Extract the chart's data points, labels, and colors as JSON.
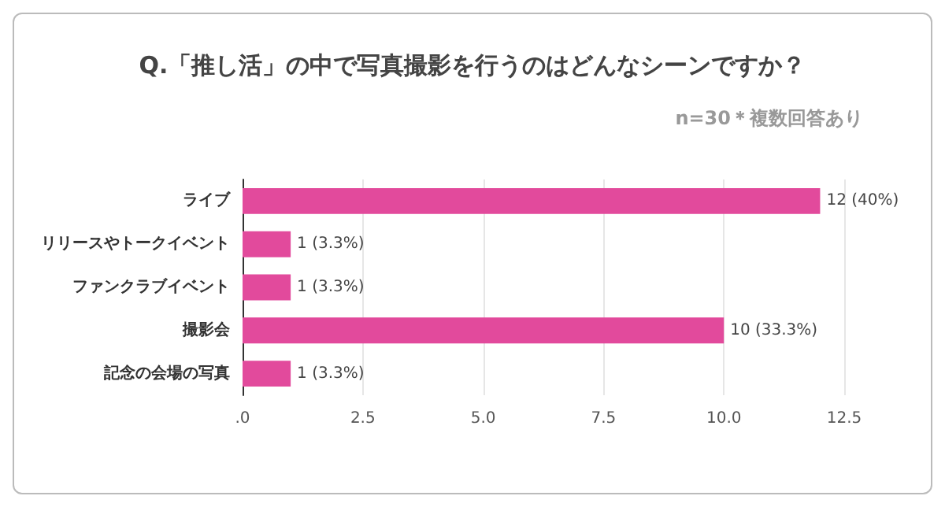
{
  "chart_data": {
    "type": "bar",
    "orientation": "horizontal",
    "title": "Q.「推し活」の中で写真撮影を行うのはどんなシーンですか？",
    "subtitle": "n=30＊複数回答あり",
    "categories": [
      "ライブ",
      "リリースやトークイベント",
      "ファンクラブイベント",
      "撮影会",
      "記念の会場の写真"
    ],
    "values": [
      12,
      1,
      1,
      10,
      1
    ],
    "color": "#e24a9c",
    "value_labels": [
      "12 (40%)",
      "1 (3.3%)",
      "1 (3.3%)",
      "10 (33.3%)",
      "1 (3.3%)"
    ],
    "xlim": [
      0,
      12.5
    ],
    "xticks": [
      {
        "value": 0,
        "label": ".0"
      },
      2.5,
      {
        "value": 5,
        "label": "5.0"
      },
      7.5,
      {
        "value": 10,
        "label": "10.0"
      },
      12.5
    ],
    "grid": "x"
  }
}
